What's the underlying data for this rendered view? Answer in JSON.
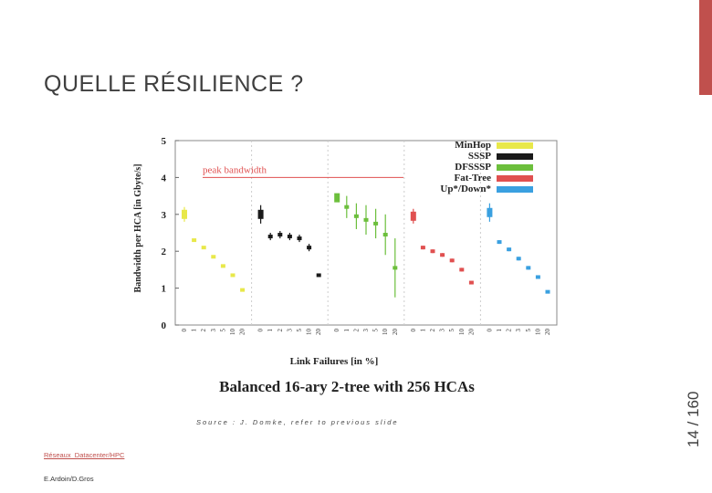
{
  "slide": {
    "title": "QUELLE RÉSILIENCE ?",
    "page_number": "14 / 160",
    "source": "Source : J. Domke, refer to previous slide",
    "footer_link": "Réseaux_Datacenter/HPC",
    "footer_authors": "E.Ardoin/D.Gros",
    "accent_color": "#c0504d"
  },
  "chart_data": {
    "type": "scatter",
    "title": "Balanced 16-ary 2-tree with 256 HCAs",
    "xlabel": "Link Failures [in %]",
    "ylabel": "Bandwidth per HCA [in Gbyte/s]",
    "ylim": [
      0,
      5
    ],
    "yticks": [
      "0",
      "1",
      "2",
      "3",
      "4",
      "5"
    ],
    "xtick_labels": [
      "0",
      "1",
      "2",
      "3",
      "5",
      "10",
      "20"
    ],
    "reference_line": {
      "label": "peak bandwidth",
      "value": 4.0,
      "color": "#e05050"
    },
    "legend_position": "top-right",
    "series": [
      {
        "name": "MinHop",
        "color": "#e8e84a",
        "values": [
          3.0,
          2.3,
          2.1,
          1.85,
          1.6,
          1.35,
          0.95
        ],
        "err": [
          0.2,
          0.03,
          0.03,
          0.03,
          0.03,
          0.03,
          0.02
        ]
      },
      {
        "name": "SSSP",
        "color": "#1a1a1a",
        "values": [
          3.0,
          2.4,
          2.45,
          2.4,
          2.35,
          2.1,
          1.35
        ],
        "err": [
          0.25,
          0.1,
          0.1,
          0.1,
          0.1,
          0.1,
          0.02
        ]
      },
      {
        "name": "DFSSSP",
        "color": "#6cbf3c",
        "values": [
          3.45,
          3.2,
          2.95,
          2.85,
          2.75,
          2.45,
          1.55
        ],
        "err": [
          0.1,
          0.3,
          0.35,
          0.4,
          0.4,
          0.55,
          0.8
        ]
      },
      {
        "name": "Fat-Tree",
        "color": "#e05050",
        "values": [
          2.95,
          2.1,
          2.0,
          1.9,
          1.75,
          1.5,
          1.15
        ],
        "err": [
          0.2,
          0.05,
          0.05,
          0.05,
          0.05,
          0.05,
          0.03
        ]
      },
      {
        "name": "Up*/Down*",
        "color": "#3aa0e0",
        "values": [
          3.05,
          2.25,
          2.05,
          1.8,
          1.55,
          1.3,
          0.9
        ],
        "err": [
          0.25,
          0.05,
          0.05,
          0.05,
          0.05,
          0.05,
          0.02
        ]
      }
    ]
  }
}
